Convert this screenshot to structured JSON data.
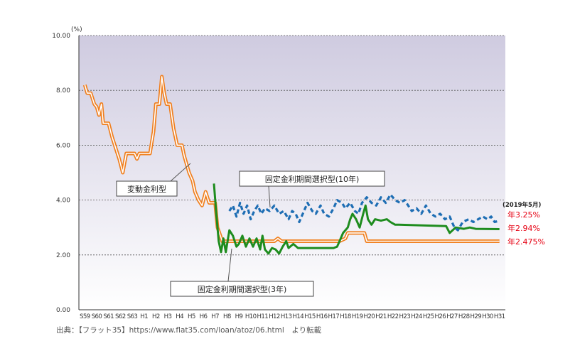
{
  "chart_data": {
    "type": "line",
    "unit_label": "(%)",
    "ylim": [
      0,
      10
    ],
    "y_ticks": [
      "0.00",
      "2.00",
      "4.00",
      "6.00",
      "8.00",
      "10.00"
    ],
    "y_tick_values": [
      0,
      2,
      4,
      6,
      8,
      10
    ],
    "x_categories": [
      "S59",
      "S60",
      "S61",
      "S62",
      "S63",
      "H1",
      "H2",
      "H3",
      "H4",
      "H5",
      "H6",
      "H7",
      "H8",
      "H9",
      "H10",
      "H11",
      "H12",
      "H13",
      "H14",
      "H15",
      "H16",
      "H17",
      "H18",
      "H19",
      "H20",
      "H21",
      "H22",
      "H23",
      "H24",
      "H25",
      "H26",
      "H27",
      "H28",
      "H29",
      "H30",
      "H31"
    ],
    "grid": true,
    "series": [
      {
        "name": "変動金利型",
        "color": "#f07f1e",
        "style": "double",
        "points": [
          [
            0,
            8.2
          ],
          [
            0.2,
            7.9
          ],
          [
            0.5,
            7.9
          ],
          [
            0.8,
            7.5
          ],
          [
            1.0,
            7.4
          ],
          [
            1.2,
            7.1
          ],
          [
            1.4,
            7.5
          ],
          [
            1.55,
            6.8
          ],
          [
            2.0,
            6.8
          ],
          [
            2.3,
            6.3
          ],
          [
            2.6,
            5.9
          ],
          [
            2.9,
            5.5
          ],
          [
            3.2,
            5.0
          ],
          [
            3.5,
            5.7
          ],
          [
            4.2,
            5.7
          ],
          [
            4.4,
            5.5
          ],
          [
            4.6,
            5.7
          ],
          [
            5.5,
            5.7
          ],
          [
            5.8,
            6.5
          ],
          [
            6.0,
            7.5
          ],
          [
            6.3,
            7.5
          ],
          [
            6.5,
            8.5
          ],
          [
            6.7,
            7.9
          ],
          [
            6.9,
            7.5
          ],
          [
            7.2,
            7.5
          ],
          [
            7.5,
            6.6
          ],
          [
            7.8,
            6.0
          ],
          [
            8.2,
            6.0
          ],
          [
            8.4,
            5.6
          ],
          [
            8.8,
            5.0
          ],
          [
            9.1,
            4.7
          ],
          [
            9.3,
            4.3
          ],
          [
            9.6,
            4.0
          ],
          [
            9.9,
            3.8
          ],
          [
            10.2,
            4.3
          ],
          [
            10.5,
            3.9
          ],
          [
            11.0,
            3.9
          ],
          [
            11.2,
            3.0
          ],
          [
            11.6,
            2.5
          ],
          [
            16.0,
            2.5
          ],
          [
            16.3,
            2.6
          ],
          [
            16.6,
            2.5
          ],
          [
            21.5,
            2.5
          ],
          [
            22.0,
            2.6
          ],
          [
            22.2,
            2.8
          ],
          [
            22.6,
            2.8
          ],
          [
            23.6,
            2.8
          ],
          [
            23.8,
            2.5
          ],
          [
            35,
            2.5
          ]
        ]
      },
      {
        "name": "固定金利期間選択型(3年)",
        "color": "#1e8c1e",
        "style": "solid",
        "points": [
          [
            10.9,
            4.6
          ],
          [
            11.1,
            3.5
          ],
          [
            11.3,
            2.5
          ],
          [
            11.5,
            2.1
          ],
          [
            11.7,
            2.6
          ],
          [
            11.9,
            2.1
          ],
          [
            12.2,
            2.9
          ],
          [
            12.5,
            2.7
          ],
          [
            12.8,
            2.3
          ],
          [
            13.0,
            2.4
          ],
          [
            13.3,
            2.7
          ],
          [
            13.6,
            2.3
          ],
          [
            13.9,
            2.6
          ],
          [
            14.2,
            2.3
          ],
          [
            14.5,
            2.6
          ],
          [
            14.8,
            2.2
          ],
          [
            15.0,
            2.7
          ],
          [
            15.2,
            2.2
          ],
          [
            15.5,
            2.05
          ],
          [
            15.8,
            2.25
          ],
          [
            16.1,
            2.2
          ],
          [
            16.4,
            2.05
          ],
          [
            16.7,
            2.3
          ],
          [
            17.0,
            2.5
          ],
          [
            17.2,
            2.25
          ],
          [
            17.6,
            2.4
          ],
          [
            18.0,
            2.25
          ],
          [
            21.0,
            2.25
          ],
          [
            21.3,
            2.3
          ],
          [
            21.5,
            2.5
          ],
          [
            21.8,
            2.8
          ],
          [
            22.2,
            3.0
          ],
          [
            22.4,
            3.3
          ],
          [
            22.6,
            3.5
          ],
          [
            22.9,
            3.3
          ],
          [
            23.2,
            3.0
          ],
          [
            23.5,
            3.5
          ],
          [
            23.7,
            3.8
          ],
          [
            23.9,
            3.3
          ],
          [
            24.2,
            3.1
          ],
          [
            24.5,
            3.3
          ],
          [
            25.0,
            3.25
          ],
          [
            25.5,
            3.3
          ],
          [
            25.8,
            3.2
          ],
          [
            26.2,
            3.1
          ],
          [
            26.5,
            3.1
          ],
          [
            30.5,
            3.05
          ],
          [
            30.8,
            2.8
          ],
          [
            31.3,
            3.0
          ],
          [
            32.0,
            2.95
          ],
          [
            32.5,
            3.0
          ],
          [
            33.0,
            2.95
          ],
          [
            35,
            2.94
          ]
        ]
      },
      {
        "name": "固定金利期間選択型(10年)",
        "color": "#1e6eb4",
        "style": "dashed",
        "points": [
          [
            12.2,
            3.6
          ],
          [
            12.5,
            3.8
          ],
          [
            12.8,
            3.4
          ],
          [
            13.1,
            3.9
          ],
          [
            13.4,
            3.5
          ],
          [
            13.7,
            3.8
          ],
          [
            14.0,
            3.3
          ],
          [
            14.3,
            3.6
          ],
          [
            14.6,
            3.8
          ],
          [
            14.9,
            3.5
          ],
          [
            15.2,
            3.7
          ],
          [
            15.6,
            3.6
          ],
          [
            16.0,
            3.8
          ],
          [
            16.4,
            3.5
          ],
          [
            16.8,
            3.6
          ],
          [
            17.2,
            3.3
          ],
          [
            17.5,
            3.6
          ],
          [
            17.8,
            3.5
          ],
          [
            18.1,
            3.2
          ],
          [
            18.4,
            3.5
          ],
          [
            18.8,
            3.9
          ],
          [
            19.2,
            3.6
          ],
          [
            19.5,
            3.5
          ],
          [
            19.9,
            3.8
          ],
          [
            20.2,
            3.5
          ],
          [
            20.6,
            3.4
          ],
          [
            21.0,
            3.7
          ],
          [
            21.3,
            4.0
          ],
          [
            21.7,
            3.9
          ],
          [
            22.0,
            3.7
          ],
          [
            22.4,
            3.9
          ],
          [
            22.8,
            3.6
          ],
          [
            23.1,
            3.5
          ],
          [
            23.4,
            3.9
          ],
          [
            23.8,
            4.1
          ],
          [
            24.2,
            3.9
          ],
          [
            24.6,
            3.8
          ],
          [
            25.0,
            4.1
          ],
          [
            25.4,
            3.9
          ],
          [
            25.8,
            4.2
          ],
          [
            26.2,
            4.0
          ],
          [
            26.6,
            3.9
          ],
          [
            27.0,
            4.0
          ],
          [
            27.3,
            3.8
          ],
          [
            27.6,
            3.6
          ],
          [
            28.0,
            3.7
          ],
          [
            28.4,
            3.5
          ],
          [
            28.8,
            3.8
          ],
          [
            29.2,
            3.5
          ],
          [
            29.6,
            3.4
          ],
          [
            30.0,
            3.5
          ],
          [
            30.4,
            3.3
          ],
          [
            30.8,
            3.4
          ],
          [
            31.2,
            3.0
          ],
          [
            31.5,
            2.9
          ],
          [
            31.9,
            3.2
          ],
          [
            32.4,
            3.3
          ],
          [
            32.8,
            3.2
          ],
          [
            33.2,
            3.3
          ],
          [
            33.6,
            3.4
          ],
          [
            34.0,
            3.3
          ],
          [
            34.3,
            3.4
          ],
          [
            34.6,
            3.2
          ],
          [
            35,
            3.25
          ]
        ]
      }
    ],
    "annotations": {
      "as_of": "(2019年5月)",
      "rates": [
        "年3.25%",
        "年2.94%",
        "年2.475%"
      ]
    }
  },
  "labels": {
    "hendo": "変動金利型",
    "fixed10": "固定金利期間選択型(10年)",
    "fixed3": "固定金利期間選択型(3年)"
  },
  "source": "出典：【フラット35】https://www.flat35.com/loan/atoz/06.html　より転載"
}
